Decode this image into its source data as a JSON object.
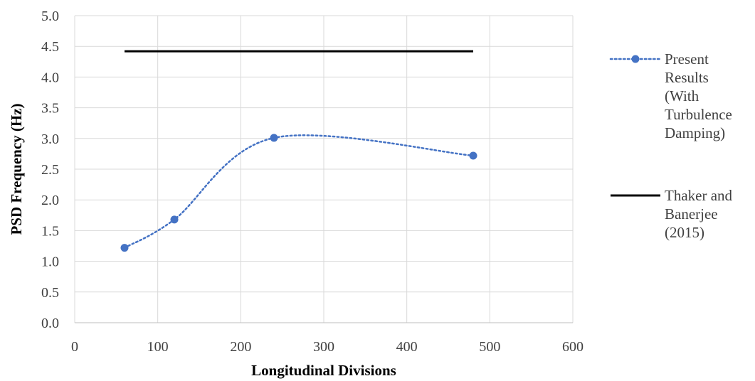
{
  "chart_data": {
    "type": "line",
    "title": "",
    "xlabel": "Longitudinal Divisions",
    "ylabel": "PSD Frequency (Hz)",
    "xlim": [
      0,
      600
    ],
    "ylim": [
      0,
      5.0
    ],
    "x_ticks": [
      0,
      100,
      200,
      300,
      400,
      500,
      600
    ],
    "x_tick_labels": [
      "0",
      "100",
      "200",
      "300",
      "400",
      "500",
      "600"
    ],
    "y_ticks": [
      0,
      0.5,
      1.0,
      1.5,
      2.0,
      2.5,
      3.0,
      3.5,
      4.0,
      4.5,
      5.0
    ],
    "y_tick_labels": [
      "0.0",
      "0.5",
      "1.0",
      "1.5",
      "2.0",
      "2.5",
      "3.0",
      "3.5",
      "4.0",
      "4.5",
      "5.0"
    ],
    "grid": true,
    "legend_position": "right",
    "series": [
      {
        "name": "Present Results (With Turbulence Damping)",
        "legend_lines": [
          "Present",
          "Results",
          "(With",
          "Turbulence",
          "Damping)"
        ],
        "style": "dotted-smooth-with-markers",
        "color": "#4472C4",
        "x": [
          60,
          120,
          240,
          480
        ],
        "y": [
          1.22,
          1.68,
          3.01,
          2.72
        ]
      },
      {
        "name": "Thaker and Banerjee (2015)",
        "legend_lines": [
          "Thaker and",
          "Banerjee",
          "(2015)"
        ],
        "style": "solid",
        "color": "#000000",
        "x": [
          60,
          480
        ],
        "y": [
          4.42,
          4.42
        ]
      }
    ]
  }
}
